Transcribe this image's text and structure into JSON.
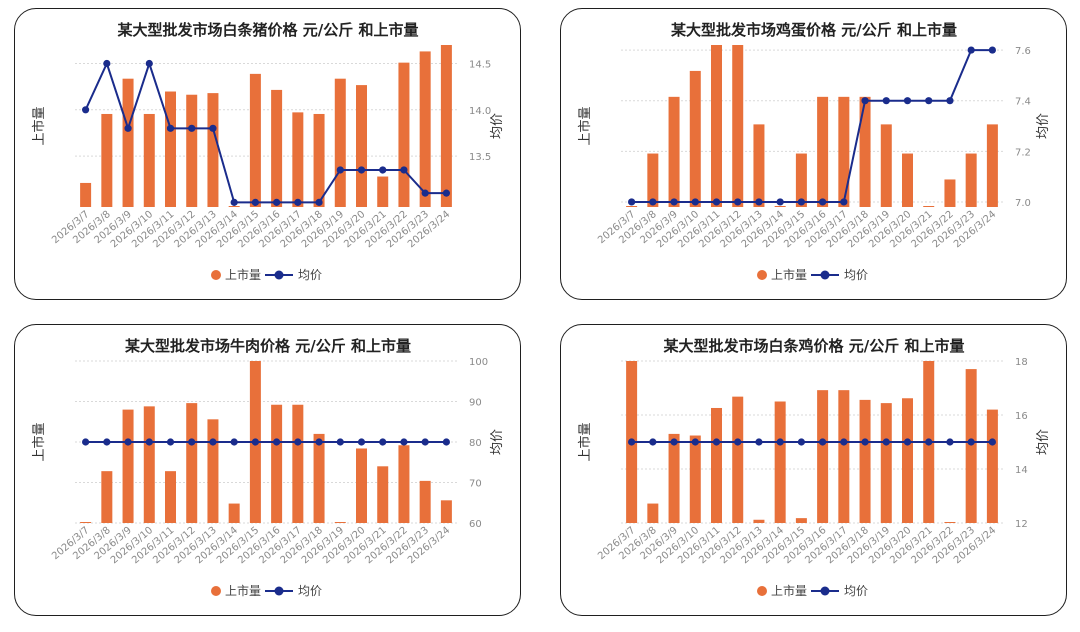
{
  "colors": {
    "bar": "#E8703A",
    "line": "#1A2C8C",
    "grid": "#d9d9d9",
    "tick": "#8a8a8a"
  },
  "chart_data": [
    {
      "type": "bar+line",
      "title": "某大型批发市场白条猪价格 元/公斤 和上市量",
      "ylabel_left": "上市量",
      "ylabel_right": "均价",
      "legend": {
        "bar": "上市量",
        "line": "均价",
        "position": "bottom"
      },
      "categories": [
        "2026/3/7",
        "2026/3/8",
        "2026/3/9",
        "2026/3/10",
        "2026/3/11",
        "2026/3/12",
        "2026/3/13",
        "2026/3/14",
        "2026/3/15",
        "2026/3/16",
        "2026/3/17",
        "2026/3/18",
        "2026/3/19",
        "2026/3/20",
        "2026/3/21",
        "2026/3/22",
        "2026/3/23",
        "2026/3/24"
      ],
      "bar_values": [
        15,
        58,
        80,
        58,
        72,
        70,
        71,
        0,
        83,
        73,
        59,
        58,
        80,
        76,
        19,
        90,
        97,
        101
      ],
      "bar_ylim": [
        0,
        101
      ],
      "line_values": [
        14.0,
        14.5,
        13.8,
        14.5,
        13.8,
        13.8,
        13.8,
        13.0,
        13.0,
        13.0,
        13.0,
        13.0,
        13.35,
        13.35,
        13.35,
        13.35,
        13.1,
        13.1
      ],
      "right_ylim": [
        12.95,
        14.7
      ],
      "right_ticks": [
        {
          "v": 13.5,
          "label": "13.5"
        },
        {
          "v": 14.0,
          "label": "14.0"
        },
        {
          "v": 14.5,
          "label": "14.5"
        }
      ],
      "grid": true
    },
    {
      "type": "bar+line",
      "title": "某大型批发市场鸡蛋价格 元/公斤 和上市量",
      "ylabel_left": "上市量",
      "ylabel_right": "均价",
      "legend": {
        "bar": "上市量",
        "line": "均价",
        "position": "bottom"
      },
      "categories": [
        "2026/3/7",
        "2026/3/8",
        "2026/3/9",
        "2026/3/10",
        "2026/3/11",
        "2026/3/12",
        "2026/3/13",
        "2026/3/14",
        "2026/3/15",
        "2026/3/16",
        "2026/3/17",
        "2026/3/18",
        "2026/3/19",
        "2026/3/20",
        "2026/3/21",
        "2026/3/22",
        "2026/3/23",
        "2026/3/24"
      ],
      "bar_values": [
        0,
        33,
        68,
        84,
        100,
        100,
        51,
        0,
        33,
        68,
        68,
        68,
        51,
        33,
        0,
        17,
        33,
        51
      ],
      "bar_ylim": [
        0,
        100
      ],
      "line_values": [
        7.0,
        7.0,
        7.0,
        7.0,
        7.0,
        7.0,
        7.0,
        7.0,
        7.0,
        7.0,
        7.0,
        7.4,
        7.4,
        7.4,
        7.4,
        7.4,
        7.6,
        7.6
      ],
      "right_ylim": [
        6.98,
        7.62
      ],
      "right_ticks": [
        {
          "v": 7.0,
          "label": "7.0"
        },
        {
          "v": 7.2,
          "label": "7.2"
        },
        {
          "v": 7.4,
          "label": "7.4"
        },
        {
          "v": 7.6,
          "label": "7.6"
        }
      ],
      "grid": true
    },
    {
      "type": "bar+line",
      "title": "某大型批发市场牛肉价格 元/公斤 和上市量",
      "ylabel_left": "上市量",
      "ylabel_right": "均价",
      "legend": {
        "bar": "上市量",
        "line": "均价",
        "position": "bottom"
      },
      "categories": [
        "2026/3/7",
        "2026/3/8",
        "2026/3/9",
        "2026/3/10",
        "2026/3/11",
        "2026/3/12",
        "2026/3/13",
        "2026/3/14",
        "2026/3/15",
        "2026/3/16",
        "2026/3/17",
        "2026/3/18",
        "2026/3/19",
        "2026/3/20",
        "2026/3/21",
        "2026/3/22",
        "2026/3/23",
        "2026/3/24"
      ],
      "bar_values": [
        0,
        32,
        70,
        72,
        32,
        74,
        64,
        12,
        100,
        73,
        73,
        55,
        0,
        46,
        35,
        48,
        26,
        14
      ],
      "bar_ylim": [
        0,
        100
      ],
      "line_values": [
        80,
        80,
        80,
        80,
        80,
        80,
        80,
        80,
        80,
        80,
        80,
        80,
        80,
        80,
        80,
        80,
        80,
        80
      ],
      "right_ylim": [
        60,
        100
      ],
      "right_ticks": [
        {
          "v": 60,
          "label": "60"
        },
        {
          "v": 70,
          "label": "70"
        },
        {
          "v": 80,
          "label": "80"
        },
        {
          "v": 90,
          "label": "90"
        },
        {
          "v": 100,
          "label": "100"
        }
      ],
      "grid": true
    },
    {
      "type": "bar+line",
      "title": "某大型批发市场白条鸡价格 元/公斤 和上市量",
      "ylabel_left": "上市量",
      "ylabel_right": "均价",
      "legend": {
        "bar": "上市量",
        "line": "均价",
        "position": "bottom"
      },
      "categories": [
        "2026/3/7",
        "2026/3/8",
        "2026/3/9",
        "2026/3/10",
        "2026/3/11",
        "2026/3/12",
        "2026/3/13",
        "2026/3/14",
        "2026/3/15",
        "2026/3/16",
        "2026/3/17",
        "2026/3/18",
        "2026/3/19",
        "2026/3/20",
        "2026/3/21",
        "2026/3/22",
        "2026/3/23",
        "2026/3/24"
      ],
      "bar_values": [
        100,
        12,
        55,
        54,
        71,
        78,
        2,
        75,
        3,
        82,
        82,
        76,
        74,
        77,
        100,
        0,
        95,
        70
      ],
      "bar_ylim": [
        0,
        100
      ],
      "line_values": [
        15,
        15,
        15,
        15,
        15,
        15,
        15,
        15,
        15,
        15,
        15,
        15,
        15,
        15,
        15,
        15,
        15,
        15
      ],
      "right_ylim": [
        12,
        18
      ],
      "right_ticks": [
        {
          "v": 12,
          "label": "12"
        },
        {
          "v": 14,
          "label": "14"
        },
        {
          "v": 16,
          "label": "16"
        },
        {
          "v": 18,
          "label": "18"
        }
      ],
      "grid": true
    }
  ]
}
